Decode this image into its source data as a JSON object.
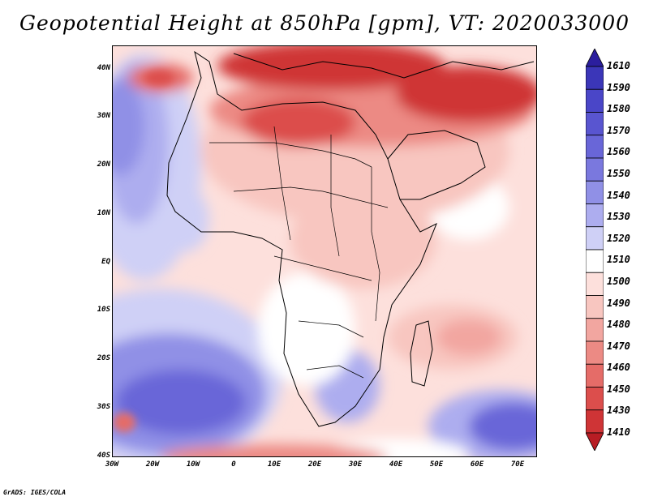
{
  "title": "Geopotential Height at 850hPa [gpm], VT: 2020033000",
  "credit": "GrADS: IGES/COLA",
  "map": {
    "lat_labels": [
      "40N",
      "30N",
      "20N",
      "10N",
      "EQ",
      "10S",
      "20S",
      "30S",
      "40S"
    ],
    "lon_labels": [
      "30W",
      "20W",
      "10W",
      "0",
      "10E",
      "20E",
      "30E",
      "40E",
      "50E",
      "60E",
      "70E"
    ],
    "lat_range": [
      -40,
      45
    ],
    "lon_range": [
      -30,
      75
    ]
  },
  "colorbar": {
    "labels": [
      "1610",
      "1590",
      "1580",
      "1570",
      "1560",
      "1550",
      "1540",
      "1530",
      "1520",
      "1510",
      "1500",
      "1490",
      "1480",
      "1470",
      "1460",
      "1450",
      "1430",
      "1410"
    ],
    "colors": [
      "#2b1e9e",
      "#3b36b8",
      "#4a46c8",
      "#5955d0",
      "#6966d8",
      "#7a78de",
      "#9090e6",
      "#adadef",
      "#cfd0f6",
      "#ffffff",
      "#fde0dc",
      "#f8c6c0",
      "#f2a6a0",
      "#ec8a84",
      "#e56c68",
      "#dc4e4c",
      "#cf3436",
      "#b81d24"
    ]
  }
}
